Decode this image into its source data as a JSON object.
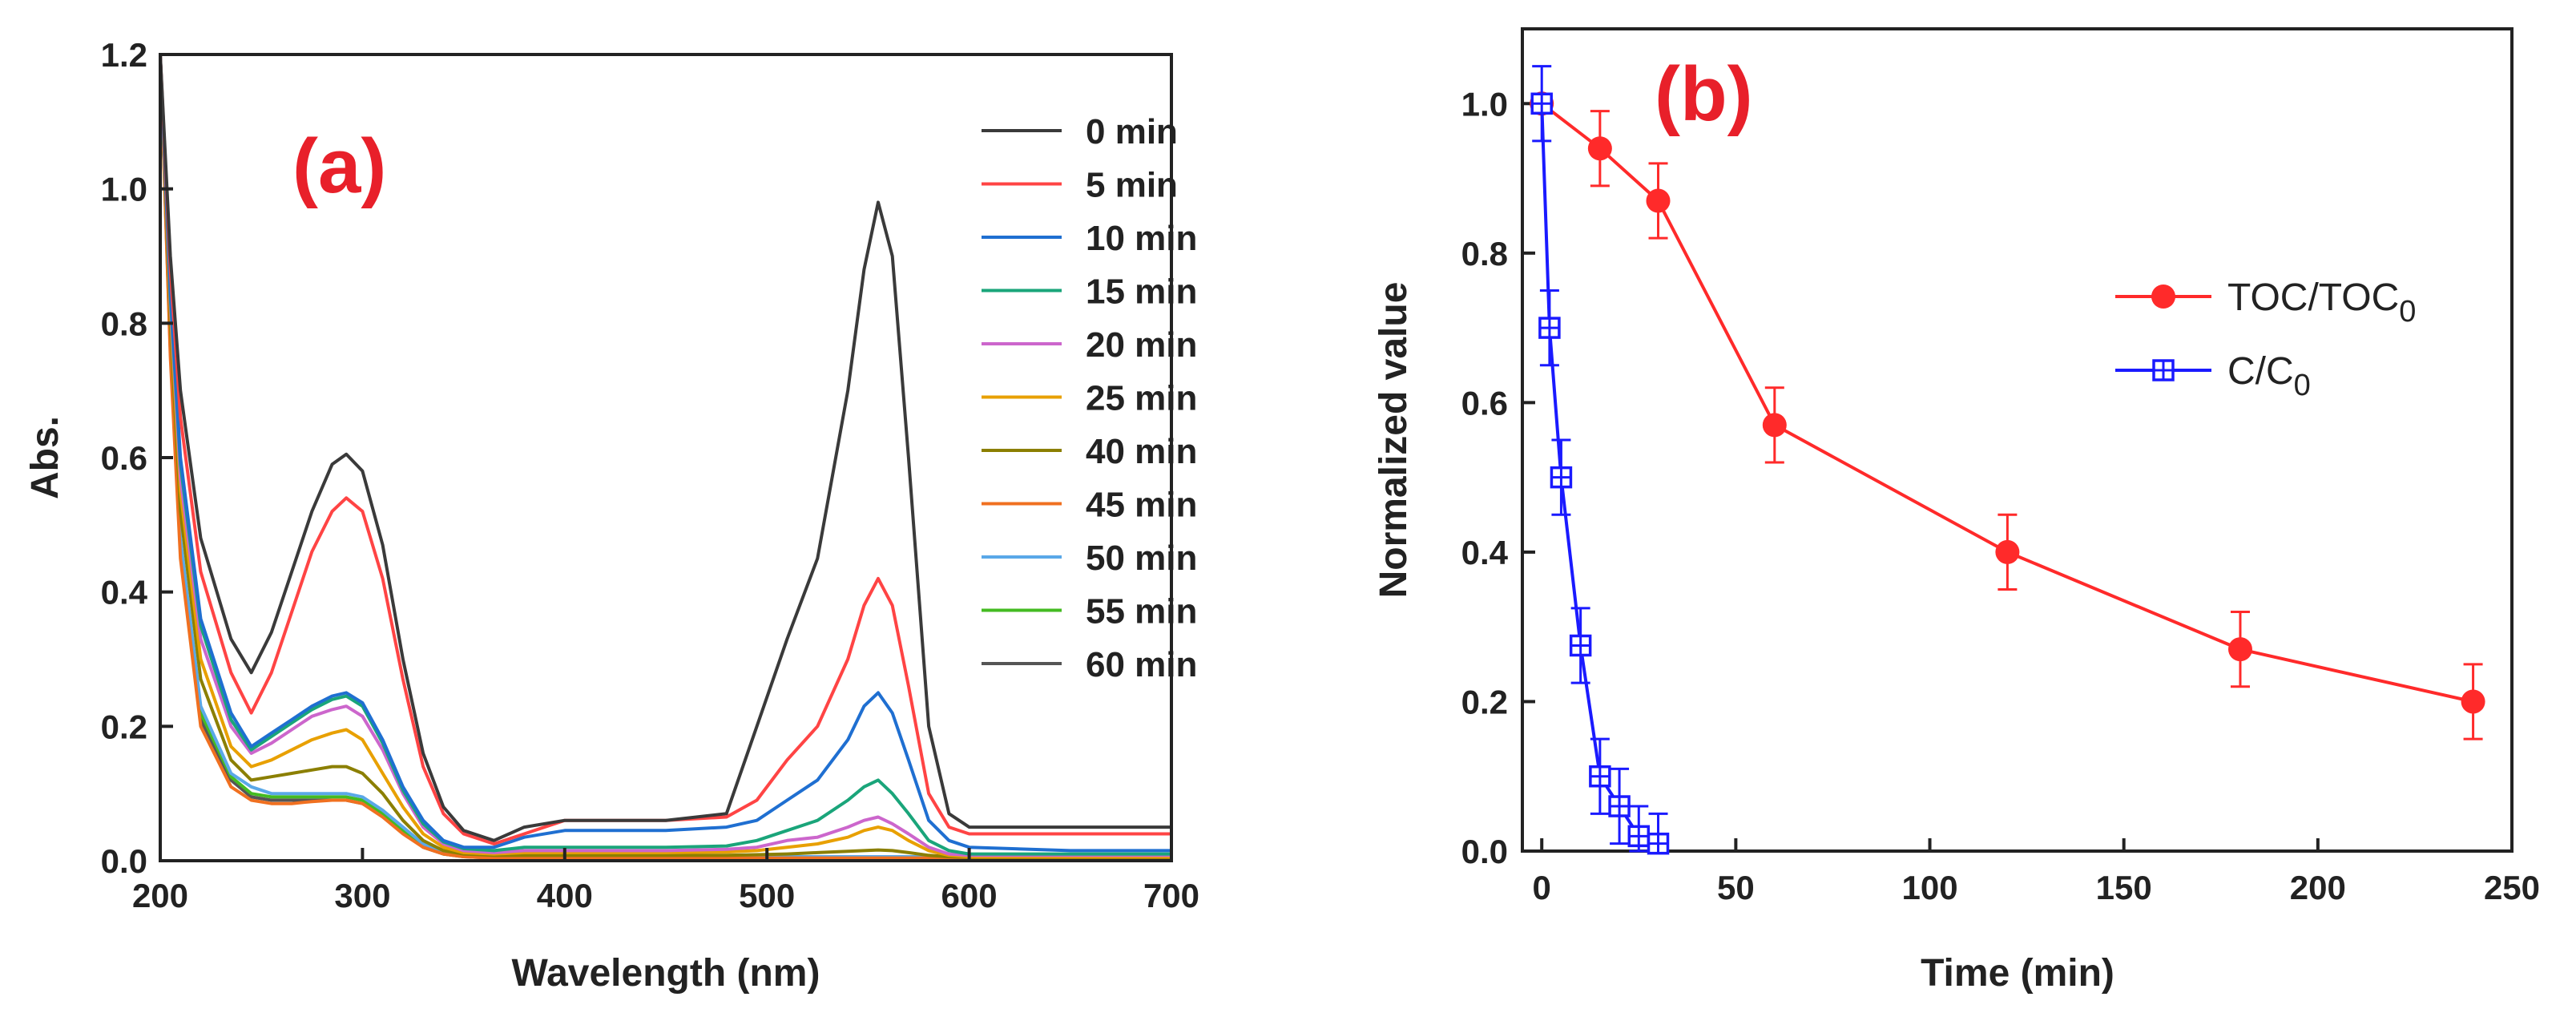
{
  "chart_data": [
    {
      "type": "line",
      "panel_label": "(a)",
      "xlabel": "Wavelength (nm)",
      "ylabel": "Abs.",
      "xlim": [
        200,
        700
      ],
      "ylim": [
        0,
        1.2
      ],
      "xticks": [
        "200",
        "300",
        "400",
        "500",
        "600",
        "700"
      ],
      "yticks": [
        "0.0",
        "0.2",
        "0.4",
        "0.6",
        "0.8",
        "1.0",
        "1.2"
      ],
      "legend_position": "top-right",
      "series": [
        {
          "name": "0 min",
          "color": "#3a3a3a",
          "x": [
            200,
            205,
            210,
            220,
            235,
            245,
            255,
            265,
            275,
            285,
            292,
            300,
            310,
            320,
            330,
            340,
            350,
            365,
            380,
            400,
            450,
            480,
            495,
            510,
            525,
            540,
            548,
            555,
            562,
            570,
            580,
            590,
            600,
            650,
            700
          ],
          "y": [
            1.2,
            0.9,
            0.7,
            0.48,
            0.33,
            0.28,
            0.34,
            0.43,
            0.52,
            0.59,
            0.605,
            0.58,
            0.47,
            0.3,
            0.16,
            0.08,
            0.045,
            0.03,
            0.05,
            0.06,
            0.06,
            0.07,
            0.2,
            0.33,
            0.45,
            0.7,
            0.88,
            0.98,
            0.9,
            0.6,
            0.2,
            0.07,
            0.05,
            0.05,
            0.05
          ]
        },
        {
          "name": "5 min",
          "color": "#ff4444",
          "x": [
            200,
            205,
            210,
            220,
            235,
            245,
            255,
            265,
            275,
            285,
            292,
            300,
            310,
            320,
            330,
            340,
            350,
            365,
            380,
            400,
            450,
            480,
            495,
            510,
            525,
            540,
            548,
            555,
            562,
            570,
            580,
            590,
            600,
            650,
            700
          ],
          "y": [
            1.2,
            0.88,
            0.66,
            0.43,
            0.28,
            0.22,
            0.28,
            0.37,
            0.46,
            0.52,
            0.54,
            0.52,
            0.42,
            0.27,
            0.14,
            0.07,
            0.04,
            0.025,
            0.04,
            0.06,
            0.06,
            0.065,
            0.09,
            0.15,
            0.2,
            0.3,
            0.38,
            0.42,
            0.38,
            0.26,
            0.1,
            0.05,
            0.04,
            0.04,
            0.04
          ]
        },
        {
          "name": "10 min",
          "color": "#1f6fd1",
          "x": [
            200,
            205,
            210,
            220,
            235,
            245,
            255,
            265,
            275,
            285,
            292,
            300,
            310,
            320,
            330,
            340,
            350,
            365,
            380,
            400,
            450,
            480,
            495,
            510,
            525,
            540,
            548,
            555,
            562,
            570,
            580,
            590,
            600,
            650,
            700
          ],
          "y": [
            1.2,
            0.85,
            0.6,
            0.36,
            0.22,
            0.17,
            0.19,
            0.21,
            0.23,
            0.245,
            0.25,
            0.235,
            0.18,
            0.11,
            0.06,
            0.03,
            0.02,
            0.02,
            0.035,
            0.045,
            0.045,
            0.05,
            0.06,
            0.09,
            0.12,
            0.18,
            0.23,
            0.25,
            0.22,
            0.15,
            0.06,
            0.03,
            0.02,
            0.015,
            0.015
          ]
        },
        {
          "name": "15 min",
          "color": "#1aa57a",
          "x": [
            200,
            205,
            210,
            220,
            235,
            245,
            255,
            265,
            275,
            285,
            292,
            300,
            310,
            320,
            330,
            340,
            350,
            365,
            380,
            400,
            450,
            480,
            495,
            510,
            525,
            540,
            548,
            555,
            562,
            570,
            580,
            590,
            600,
            650,
            700
          ],
          "y": [
            1.2,
            0.84,
            0.59,
            0.35,
            0.21,
            0.165,
            0.185,
            0.205,
            0.225,
            0.24,
            0.245,
            0.23,
            0.175,
            0.105,
            0.055,
            0.028,
            0.018,
            0.015,
            0.02,
            0.02,
            0.02,
            0.022,
            0.03,
            0.045,
            0.06,
            0.09,
            0.11,
            0.12,
            0.1,
            0.07,
            0.03,
            0.015,
            0.01,
            0.01,
            0.01
          ]
        },
        {
          "name": "20 min",
          "color": "#cc66cc",
          "x": [
            200,
            205,
            210,
            220,
            235,
            245,
            255,
            265,
            275,
            285,
            292,
            300,
            310,
            320,
            330,
            340,
            350,
            365,
            380,
            400,
            450,
            480,
            495,
            510,
            525,
            540,
            548,
            555,
            562,
            570,
            580,
            590,
            600,
            650,
            700
          ],
          "y": [
            1.2,
            0.83,
            0.57,
            0.33,
            0.2,
            0.16,
            0.175,
            0.195,
            0.215,
            0.225,
            0.23,
            0.215,
            0.165,
            0.1,
            0.05,
            0.025,
            0.015,
            0.012,
            0.015,
            0.015,
            0.015,
            0.017,
            0.02,
            0.03,
            0.035,
            0.05,
            0.06,
            0.065,
            0.055,
            0.04,
            0.02,
            0.01,
            0.008,
            0.008,
            0.008
          ]
        },
        {
          "name": "25 min",
          "color": "#e8a000",
          "x": [
            200,
            205,
            210,
            220,
            235,
            245,
            255,
            265,
            275,
            285,
            292,
            300,
            310,
            320,
            330,
            340,
            350,
            365,
            380,
            400,
            450,
            480,
            495,
            510,
            525,
            540,
            548,
            555,
            562,
            570,
            580,
            590,
            600,
            650,
            700
          ],
          "y": [
            1.2,
            0.82,
            0.55,
            0.3,
            0.17,
            0.14,
            0.15,
            0.165,
            0.18,
            0.19,
            0.195,
            0.18,
            0.13,
            0.08,
            0.04,
            0.02,
            0.012,
            0.01,
            0.012,
            0.012,
            0.012,
            0.013,
            0.015,
            0.02,
            0.025,
            0.035,
            0.045,
            0.05,
            0.045,
            0.03,
            0.015,
            0.008,
            0.006,
            0.006,
            0.006
          ]
        },
        {
          "name": "40 min",
          "color": "#8b7f00",
          "x": [
            200,
            205,
            210,
            220,
            235,
            245,
            255,
            265,
            275,
            285,
            292,
            300,
            310,
            320,
            330,
            340,
            350,
            365,
            380,
            400,
            450,
            480,
            495,
            510,
            525,
            540,
            548,
            555,
            562,
            570,
            580,
            590,
            600,
            650,
            700
          ],
          "y": [
            1.2,
            0.8,
            0.52,
            0.27,
            0.15,
            0.12,
            0.125,
            0.13,
            0.135,
            0.14,
            0.14,
            0.13,
            0.1,
            0.06,
            0.03,
            0.015,
            0.01,
            0.008,
            0.008,
            0.008,
            0.008,
            0.008,
            0.009,
            0.01,
            0.012,
            0.014,
            0.015,
            0.016,
            0.015,
            0.012,
            0.008,
            0.006,
            0.005,
            0.005,
            0.005
          ]
        },
        {
          "name": "45 min",
          "color": "#f07020",
          "x": [
            200,
            205,
            210,
            220,
            235,
            245,
            255,
            265,
            275,
            285,
            292,
            300,
            310,
            320,
            330,
            340,
            350,
            365,
            380,
            400,
            450,
            480,
            495,
            510,
            525,
            540,
            548,
            555,
            562,
            570,
            580,
            590,
            600,
            650,
            700
          ],
          "y": [
            1.2,
            0.75,
            0.45,
            0.2,
            0.11,
            0.09,
            0.085,
            0.085,
            0.088,
            0.09,
            0.09,
            0.085,
            0.065,
            0.04,
            0.02,
            0.01,
            0.006,
            0.004,
            0.004,
            0.004,
            0.004,
            0.004,
            0.004,
            0.004,
            0.004,
            0.004,
            0.004,
            0.004,
            0.004,
            0.004,
            0.004,
            0.004,
            0.004,
            0.004,
            0.004
          ]
        },
        {
          "name": "50 min",
          "color": "#5aa8e8",
          "x": [
            200,
            205,
            210,
            220,
            235,
            245,
            255,
            265,
            275,
            285,
            292,
            300,
            310,
            320,
            330,
            340,
            350,
            365,
            380,
            400,
            450,
            480,
            495,
            510,
            525,
            540,
            548,
            555,
            562,
            570,
            580,
            590,
            600,
            650,
            700
          ],
          "y": [
            1.2,
            0.78,
            0.48,
            0.23,
            0.13,
            0.11,
            0.1,
            0.1,
            0.1,
            0.1,
            0.1,
            0.095,
            0.075,
            0.05,
            0.025,
            0.012,
            0.008,
            0.006,
            0.006,
            0.006,
            0.006,
            0.006,
            0.006,
            0.006,
            0.006,
            0.006,
            0.006,
            0.006,
            0.006,
            0.006,
            0.006,
            0.006,
            0.006,
            0.006,
            0.006
          ]
        },
        {
          "name": "55 min",
          "color": "#44bb22",
          "x": [
            200,
            205,
            210,
            220,
            235,
            245,
            255,
            265,
            275,
            285,
            292,
            300,
            310,
            320,
            330,
            340,
            350,
            365,
            380,
            400,
            450,
            480,
            495,
            510,
            525,
            540,
            548,
            555,
            562,
            570,
            580,
            590,
            600,
            650,
            700
          ],
          "y": [
            1.2,
            0.77,
            0.47,
            0.22,
            0.125,
            0.1,
            0.095,
            0.095,
            0.095,
            0.095,
            0.095,
            0.09,
            0.07,
            0.045,
            0.022,
            0.01,
            0.007,
            0.005,
            0.005,
            0.005,
            0.005,
            0.005,
            0.005,
            0.005,
            0.005,
            0.005,
            0.005,
            0.005,
            0.005,
            0.005,
            0.005,
            0.005,
            0.005,
            0.005,
            0.005
          ]
        },
        {
          "name": "60 min",
          "color": "#555555",
          "x": [
            200,
            205,
            210,
            220,
            235,
            245,
            255,
            265,
            275,
            285,
            292,
            300,
            310,
            320,
            330,
            340,
            350,
            365,
            380,
            400,
            450,
            480,
            495,
            510,
            525,
            540,
            548,
            555,
            562,
            570,
            580,
            590,
            600,
            650,
            700
          ],
          "y": [
            1.2,
            0.76,
            0.46,
            0.21,
            0.12,
            0.095,
            0.09,
            0.09,
            0.09,
            0.09,
            0.09,
            0.085,
            0.068,
            0.043,
            0.02,
            0.01,
            0.006,
            0.004,
            0.004,
            0.004,
            0.004,
            0.004,
            0.004,
            0.004,
            0.004,
            0.004,
            0.004,
            0.004,
            0.004,
            0.004,
            0.004,
            0.004,
            0.004,
            0.004,
            0.004
          ]
        }
      ]
    },
    {
      "type": "line",
      "panel_label": "(b)",
      "xlabel": "Time (min)",
      "ylabel": "Normalized value",
      "xlim": [
        -5,
        250
      ],
      "ylim": [
        0,
        1.1
      ],
      "xticks": [
        "0",
        "50",
        "100",
        "150",
        "200",
        "250"
      ],
      "yticks": [
        "0.0",
        "0.2",
        "0.4",
        "0.6",
        "0.8",
        "1.0"
      ],
      "legend_position": "center-right",
      "series": [
        {
          "name": "TOC/TOC0",
          "legend_main": "TOC/TOC",
          "legend_sub": "0",
          "color": "#ff2a2a",
          "marker": "filled-circle",
          "x": [
            0,
            15,
            30,
            60,
            120,
            180,
            240
          ],
          "y": [
            1.0,
            0.94,
            0.87,
            0.57,
            0.4,
            0.27,
            0.2
          ],
          "error": [
            0,
            0.05,
            0.05,
            0.05,
            0.05,
            0.05,
            0.05
          ]
        },
        {
          "name": "C/C0",
          "legend_main": "C/C",
          "legend_sub": "0",
          "color": "#1a1aff",
          "marker": "open-square-cross",
          "x": [
            0,
            2,
            5,
            10,
            15,
            20,
            25,
            30
          ],
          "y": [
            1.0,
            0.7,
            0.5,
            0.275,
            0.1,
            0.06,
            0.02,
            0.01
          ],
          "error": [
            0.05,
            0.05,
            0.05,
            0.05,
            0.05,
            0.05,
            0.04,
            0.04
          ]
        }
      ]
    }
  ]
}
